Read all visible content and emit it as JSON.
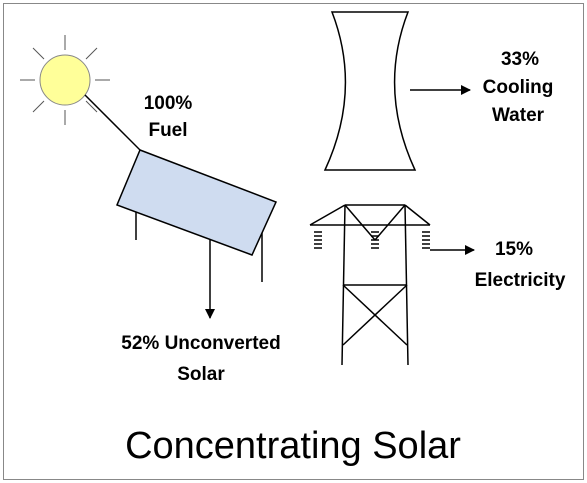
{
  "title": "Concentrating Solar",
  "flows": [
    {
      "lines": [
        "100%",
        "Fuel"
      ]
    },
    {
      "lines": [
        "33%",
        "Cooling",
        "Water"
      ]
    },
    {
      "lines": [
        "15%",
        "Electricity"
      ]
    },
    {
      "lines": [
        "52% Unconverted",
        "Solar"
      ]
    }
  ]
}
